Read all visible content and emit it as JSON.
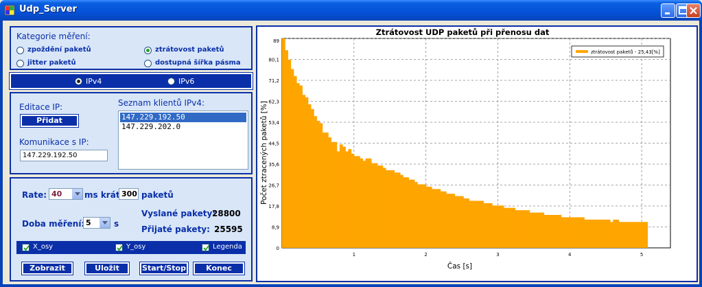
{
  "window": {
    "title": "Udp_Server"
  },
  "category": {
    "heading": "Kategorie měření:",
    "options": [
      {
        "label": "zpoždění paketů",
        "selected": false
      },
      {
        "label": "ztrátovost paketů",
        "selected": true
      },
      {
        "label": "jitter paketů",
        "selected": false
      },
      {
        "label": "dostupná šířka pásma",
        "selected": false
      }
    ]
  },
  "ipversion": {
    "options": [
      {
        "label": "IPv4",
        "selected": true
      },
      {
        "label": "IPv6",
        "selected": false
      }
    ]
  },
  "ip_panel": {
    "edit_heading": "Editace IP:",
    "add_button": "Přidat",
    "comm_heading": "Komunikace s IP:",
    "comm_value": "147.229.192.50",
    "list_heading": "Seznam klientů IPv4:",
    "clients": [
      "147.229.192.50",
      "147.229.202.0"
    ],
    "selected_client": 0
  },
  "rate_panel": {
    "rate_label": "Rate:",
    "rate_value": "40",
    "ms_label": "ms krát",
    "count_value": "300",
    "packets_label": "paketů",
    "duration_label": "Doba měření:",
    "duration_value": "5",
    "s_label": "s",
    "sent_label": "Vyslané pakety:",
    "sent_value": "28800",
    "received_label": "Přijaté pakety:",
    "received_value": "25595"
  },
  "checkboxes": [
    {
      "label": "X_osy",
      "checked": true
    },
    {
      "label": "Y_osy",
      "checked": true
    },
    {
      "label": "Legenda",
      "checked": true
    }
  ],
  "buttons": {
    "show": "Zobrazit",
    "save": "Uložit",
    "startstop": "Start/Stop",
    "end": "Konec"
  },
  "colors": {
    "accent": "#0A2FA8",
    "panel": "#D8E6F8",
    "series": "#FFA500"
  },
  "chart_data": {
    "type": "bar",
    "title": "Ztrátovost UDP paketů při přenosu dat",
    "xlabel": "Čas [s]",
    "ylabel": "Počet ztracených paketů [%]",
    "xlim": [
      0,
      5.4
    ],
    "ylim": [
      0,
      89
    ],
    "xticks": [
      "1",
      "2",
      "3",
      "4",
      "5"
    ],
    "xtick_values": [
      1,
      2,
      3,
      4,
      5
    ],
    "yticks": [
      "0",
      "8,9",
      "17,8",
      "26,7",
      "35,6",
      "44,5",
      "53,4",
      "62,3",
      "71,2",
      "80,1",
      "89"
    ],
    "ytick_values": [
      0,
      8.9,
      17.8,
      26.7,
      35.6,
      44.5,
      53.4,
      62.3,
      71.2,
      80.1,
      89
    ],
    "grid": true,
    "legend_position": "top-right",
    "series": [
      {
        "name": "ztrátovost paketů - 25,43[%]",
        "x": [
          0.04,
          0.08,
          0.12,
          0.16,
          0.2,
          0.24,
          0.28,
          0.32,
          0.36,
          0.4,
          0.44,
          0.48,
          0.52,
          0.56,
          0.6,
          0.64,
          0.68,
          0.72,
          0.76,
          0.8,
          0.84,
          0.88,
          0.92,
          0.96,
          1.0,
          1.04,
          1.08,
          1.12,
          1.16,
          1.2,
          1.24,
          1.28,
          1.32,
          1.36,
          1.4,
          1.44,
          1.48,
          1.52,
          1.56,
          1.6,
          1.64,
          1.68,
          1.72,
          1.76,
          1.8,
          1.84,
          1.88,
          1.92,
          1.96,
          2.0,
          2.04,
          2.08,
          2.12,
          2.16,
          2.2,
          2.24,
          2.28,
          2.32,
          2.36,
          2.4,
          2.44,
          2.48,
          2.52,
          2.56,
          2.6,
          2.64,
          2.68,
          2.72,
          2.76,
          2.8,
          2.84,
          2.88,
          2.92,
          2.96,
          3.0,
          3.04,
          3.08,
          3.12,
          3.16,
          3.2,
          3.24,
          3.28,
          3.32,
          3.36,
          3.4,
          3.44,
          3.48,
          3.52,
          3.56,
          3.6,
          3.64,
          3.68,
          3.72,
          3.76,
          3.8,
          3.84,
          3.88,
          3.92,
          3.96,
          4.0,
          4.04,
          4.08,
          4.12,
          4.16,
          4.2,
          4.24,
          4.28,
          4.32,
          4.36,
          4.4,
          4.44,
          4.48,
          4.52,
          4.56,
          4.6,
          4.64,
          4.68,
          4.72,
          4.76,
          4.8,
          4.84,
          4.88,
          4.92,
          4.96,
          5.0,
          5.04,
          5.08
        ],
        "values": [
          89,
          84,
          80,
          76,
          73,
          70,
          69,
          65,
          64,
          61,
          59,
          56,
          54,
          53,
          49,
          49,
          47,
          45,
          45,
          41,
          44,
          43,
          41,
          42,
          40,
          39,
          39,
          38,
          37,
          38,
          38,
          36,
          36,
          35,
          35,
          34,
          33,
          33,
          33,
          32,
          32,
          31,
          30,
          30,
          29,
          29,
          28,
          27,
          27,
          27,
          26,
          26,
          25,
          25,
          25,
          24,
          24,
          23,
          23,
          23,
          22,
          22,
          22,
          21,
          21,
          20,
          20,
          20,
          20,
          20,
          19,
          19,
          19,
          18,
          18,
          18,
          18,
          17,
          17,
          17,
          17,
          16,
          16,
          16,
          16,
          16,
          15,
          15,
          15,
          15,
          15,
          14,
          14,
          14,
          14,
          14,
          14,
          13,
          13,
          13,
          13,
          13,
          13,
          13,
          13,
          12,
          12,
          12,
          12,
          12,
          12,
          12,
          12,
          12,
          11,
          12,
          12,
          11,
          11,
          11,
          11,
          11,
          11,
          11,
          11,
          11,
          11
        ]
      }
    ]
  }
}
